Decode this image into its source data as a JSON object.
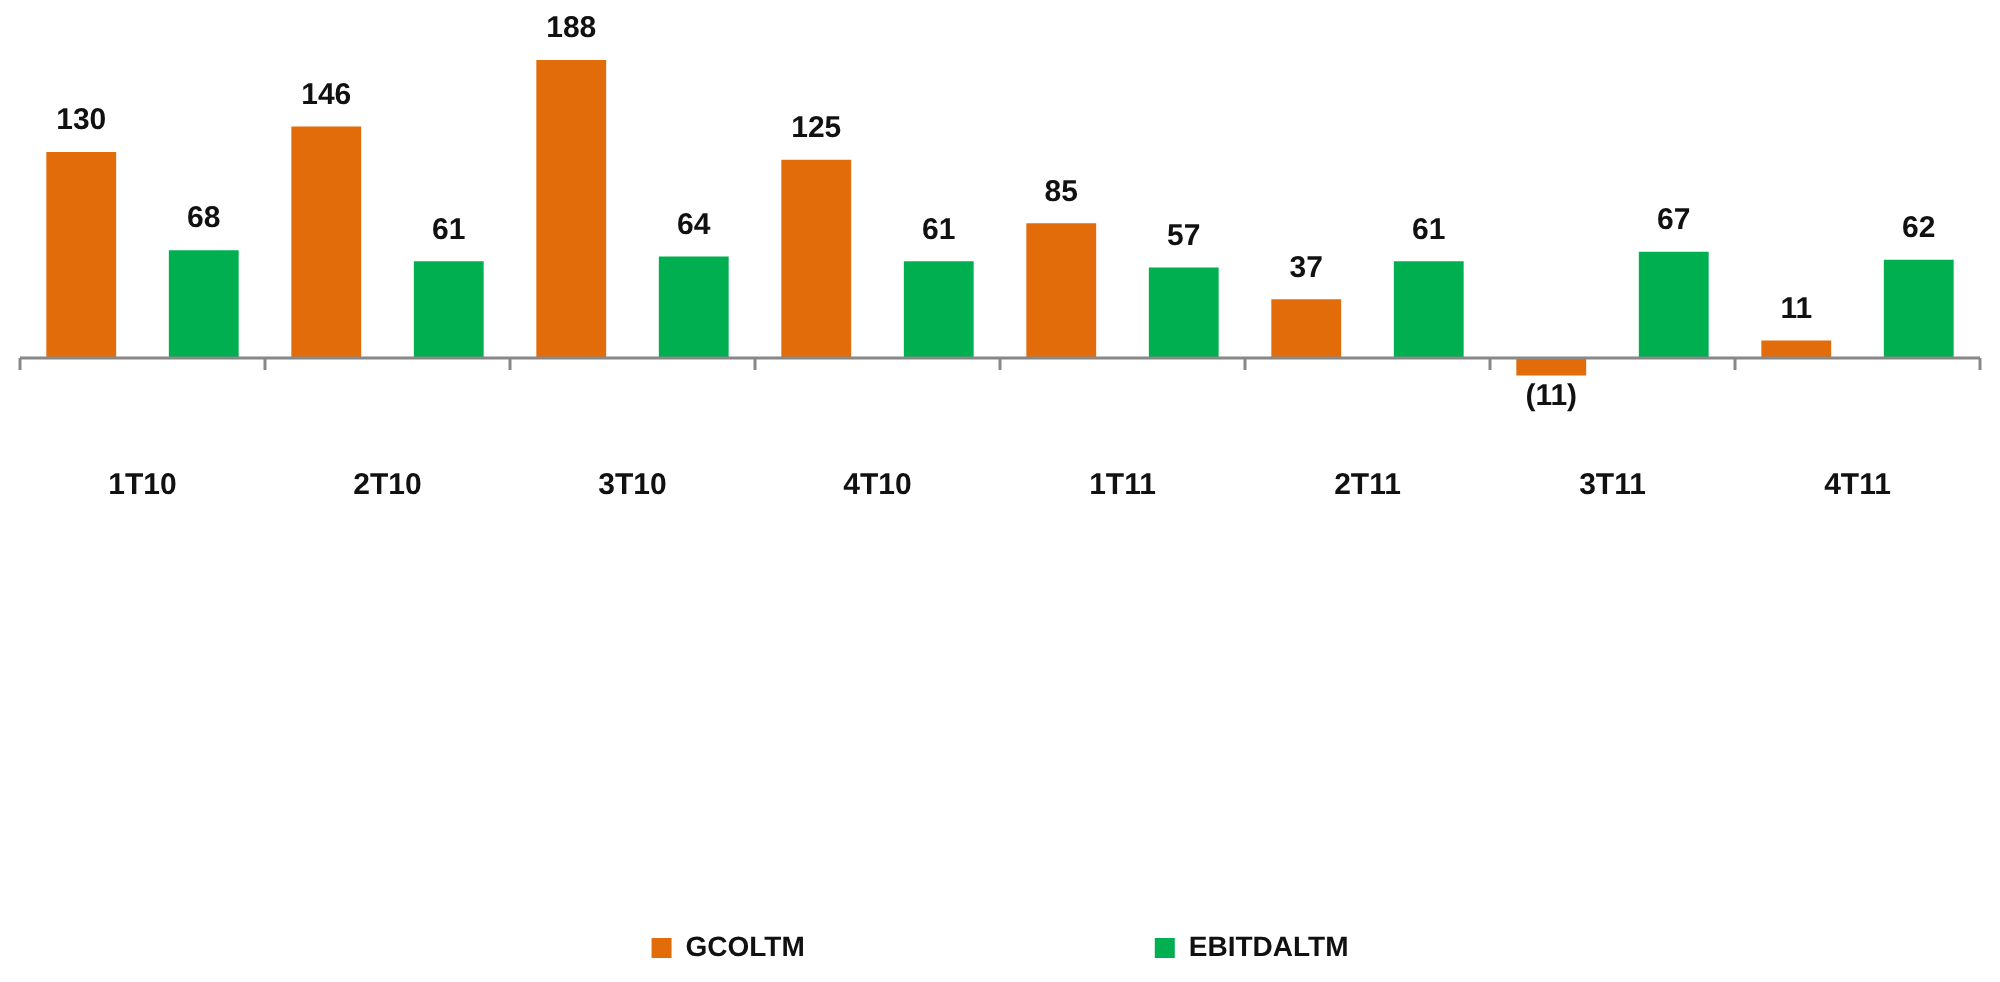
{
  "chart_data": {
    "type": "bar",
    "categories": [
      "1T10",
      "2T10",
      "3T10",
      "4T10",
      "1T11",
      "2T11",
      "3T11",
      "4T11"
    ],
    "series": [
      {
        "name": "GCOLTM",
        "color": "#e36c0a",
        "values": [
          130,
          146,
          188,
          125,
          85,
          37,
          -11,
          11
        ],
        "value_labels": [
          "130",
          "146",
          "188",
          "125",
          "85",
          "37",
          "(11)",
          "11"
        ]
      },
      {
        "name": "EBITDALTM",
        "color": "#00b050",
        "values": [
          68,
          61,
          64,
          61,
          57,
          61,
          67,
          62
        ],
        "value_labels": [
          "68",
          "61",
          "64",
          "61",
          "57",
          "61",
          "67",
          "62"
        ]
      }
    ],
    "legend": "bottom",
    "grid": false
  }
}
